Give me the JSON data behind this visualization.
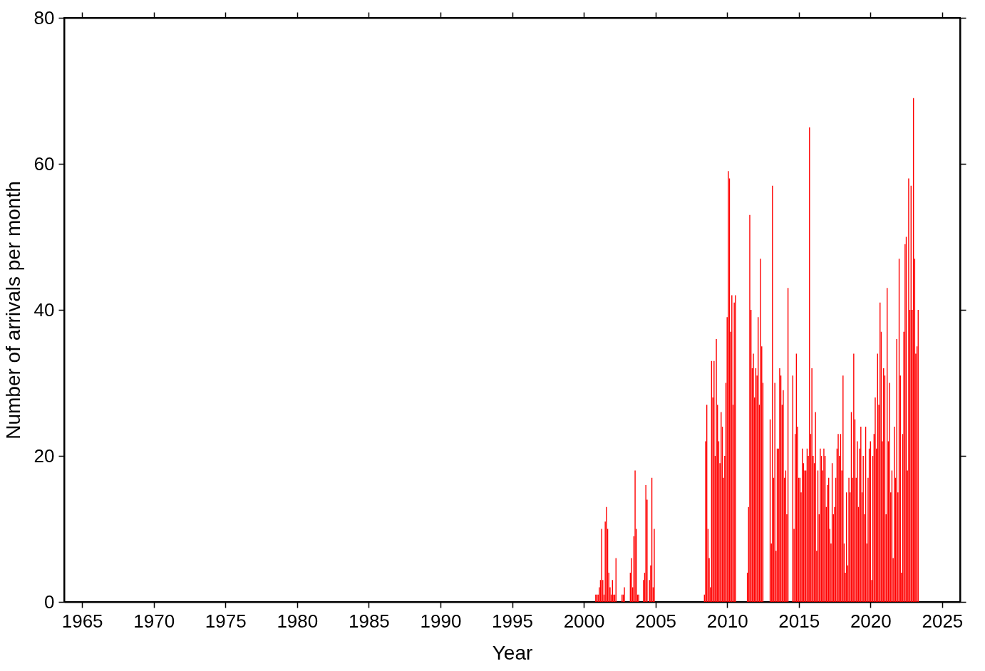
{
  "chart_data": {
    "type": "bar",
    "xlabel": "Year",
    "ylabel": "Number of arrivals per month",
    "x": [
      "2000-11",
      "2000-12",
      "2001-01",
      "2001-02",
      "2001-03",
      "2001-04",
      "2001-05",
      "2001-06",
      "2001-07",
      "2001-08",
      "2001-09",
      "2001-10",
      "2001-11",
      "2001-12",
      "2002-01",
      "2002-02",
      "2002-03",
      "2002-04",
      "2002-05",
      "2002-06",
      "2002-07",
      "2002-08",
      "2002-09",
      "2002-10",
      "2002-11",
      "2002-12",
      "2003-01",
      "2003-02",
      "2003-03",
      "2003-04",
      "2003-05",
      "2003-06",
      "2003-07",
      "2003-08",
      "2003-09",
      "2003-10",
      "2003-11",
      "2003-12",
      "2004-01",
      "2004-02",
      "2004-03",
      "2004-04",
      "2004-05",
      "2004-06",
      "2004-07",
      "2004-08",
      "2004-09",
      "2004-10",
      "2004-11",
      "2004-12",
      "2008-06",
      "2008-07",
      "2008-08",
      "2008-09",
      "2008-10",
      "2008-11",
      "2008-12",
      "2009-01",
      "2009-02",
      "2009-03",
      "2009-04",
      "2009-05",
      "2009-06",
      "2009-07",
      "2009-08",
      "2009-09",
      "2009-10",
      "2009-11",
      "2009-12",
      "2010-01",
      "2010-02",
      "2010-03",
      "2010-04",
      "2010-05",
      "2010-06",
      "2010-07",
      "2010-08",
      "2011-06",
      "2011-07",
      "2011-08",
      "2011-09",
      "2011-10",
      "2011-11",
      "2011-12",
      "2012-01",
      "2012-02",
      "2012-03",
      "2012-04",
      "2012-05",
      "2012-06",
      "2012-07",
      "2013-01",
      "2013-02",
      "2013-03",
      "2013-04",
      "2013-05",
      "2013-06",
      "2013-07",
      "2013-08",
      "2013-09",
      "2013-10",
      "2013-11",
      "2013-12",
      "2014-01",
      "2014-02",
      "2014-03",
      "2014-04",
      "2014-08",
      "2014-09",
      "2014-10",
      "2014-11",
      "2014-12",
      "2015-01",
      "2015-02",
      "2015-03",
      "2015-04",
      "2015-05",
      "2015-06",
      "2015-07",
      "2015-08",
      "2015-09",
      "2015-10",
      "2015-11",
      "2015-12",
      "2016-01",
      "2016-02",
      "2016-03",
      "2016-04",
      "2016-05",
      "2016-06",
      "2016-07",
      "2016-08",
      "2016-09",
      "2016-10",
      "2016-11",
      "2016-12",
      "2017-01",
      "2017-02",
      "2017-03",
      "2017-04",
      "2017-05",
      "2017-06",
      "2017-07",
      "2017-08",
      "2017-09",
      "2017-10",
      "2017-11",
      "2017-12",
      "2018-01",
      "2018-02",
      "2018-03",
      "2018-04",
      "2018-05",
      "2018-06",
      "2018-07",
      "2018-08",
      "2018-09",
      "2018-10",
      "2018-11",
      "2018-12",
      "2019-01",
      "2019-02",
      "2019-03",
      "2019-04",
      "2019-05",
      "2019-06",
      "2019-07",
      "2019-08",
      "2019-09",
      "2019-10",
      "2019-11",
      "2019-12",
      "2020-01",
      "2020-02",
      "2020-03",
      "2020-04",
      "2020-05",
      "2020-06",
      "2020-07",
      "2020-08",
      "2020-09",
      "2020-10",
      "2020-11",
      "2020-12",
      "2021-01",
      "2021-02",
      "2021-03",
      "2021-04",
      "2021-05",
      "2021-06",
      "2021-07",
      "2021-08",
      "2021-09",
      "2021-10",
      "2021-11",
      "2021-12",
      "2022-01",
      "2022-02",
      "2022-03",
      "2022-04",
      "2022-05",
      "2022-06",
      "2022-07",
      "2022-08",
      "2022-09",
      "2022-10",
      "2022-11",
      "2022-12",
      "2023-01",
      "2023-02",
      "2023-03",
      "2023-04",
      "2023-05"
    ],
    "series": [
      {
        "color": "#ff0000",
        "values": [
          1,
          1,
          1,
          2,
          3,
          10,
          3,
          1,
          11,
          13,
          10,
          4,
          2,
          1,
          3,
          1,
          1,
          6,
          0,
          0,
          0,
          0,
          1,
          1,
          2,
          0,
          0,
          0,
          0,
          4,
          6,
          2,
          9,
          18,
          10,
          1,
          1,
          0,
          0,
          0,
          3,
          4,
          16,
          14,
          0,
          3,
          5,
          17,
          2,
          10,
          1,
          22,
          27,
          10,
          6,
          2,
          33,
          28,
          33,
          20,
          36,
          27,
          22,
          19,
          26,
          24,
          17,
          20,
          30,
          39,
          59,
          58,
          37,
          42,
          27,
          41,
          42,
          4,
          13,
          53,
          40,
          32,
          34,
          28,
          32,
          31,
          39,
          27,
          47,
          35,
          30,
          25,
          8,
          57,
          17,
          30,
          7,
          21,
          21,
          32,
          31,
          27,
          29,
          17,
          18,
          12,
          43,
          31,
          10,
          23,
          34,
          24,
          17,
          17,
          15,
          21,
          19,
          18,
          18,
          21,
          20,
          65,
          23,
          32,
          20,
          19,
          26,
          7,
          18,
          12,
          21,
          20,
          18,
          21,
          20,
          13,
          16,
          17,
          10,
          8,
          19,
          12,
          13,
          17,
          21,
          23,
          20,
          23,
          18,
          31,
          8,
          4,
          15,
          5,
          17,
          15,
          26,
          17,
          34,
          25,
          17,
          22,
          13,
          21,
          24,
          15,
          20,
          12,
          24,
          8,
          17,
          21,
          22,
          3,
          20,
          23,
          28,
          21,
          34,
          27,
          41,
          37,
          22,
          32,
          31,
          12,
          43,
          22,
          30,
          15,
          18,
          6,
          24,
          17,
          36,
          15,
          47,
          31,
          4,
          23,
          37,
          49,
          50,
          18,
          58,
          40,
          57,
          40,
          69,
          47,
          34,
          35,
          40
        ]
      }
    ],
    "xlim": [
      "1964",
      "2026"
    ],
    "xticks": [
      "1965",
      "1970",
      "1975",
      "1980",
      "1985",
      "1990",
      "1995",
      "2000",
      "2005",
      "2010",
      "2015",
      "2020",
      "2025"
    ],
    "ylim": [
      0,
      80
    ],
    "yticks": [
      0,
      20,
      40,
      60,
      80
    ],
    "grid": false
  }
}
